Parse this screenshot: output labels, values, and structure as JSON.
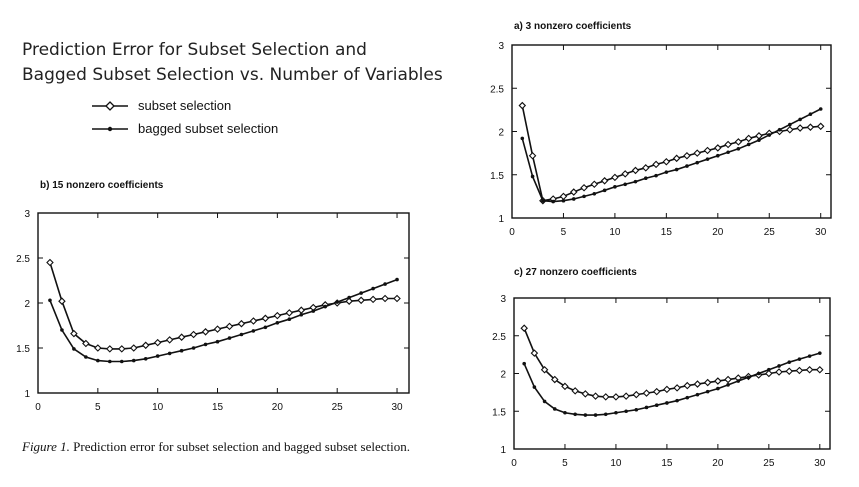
{
  "header": {
    "title_line1": "Prediction Error for Subset Selection and",
    "title_line2": "Bagged Subset Selection vs. Number of Variables"
  },
  "legend": {
    "items": [
      {
        "label": "subset selection",
        "marker": "open-diamond"
      },
      {
        "label": "bagged subset selection",
        "marker": "filled-dot"
      }
    ]
  },
  "caption": {
    "figure_label": "Figure 1.",
    "text": " Prediction error for subset selection and bagged subset selection."
  },
  "colors": {
    "line": "#111111"
  },
  "chart_data": [
    {
      "id": "a",
      "type": "line",
      "title": "a) 3 nonzero coefficients",
      "xlim": [
        0,
        31
      ],
      "ylim": [
        1,
        3
      ],
      "xticks": [
        0,
        5,
        10,
        15,
        20,
        25,
        30
      ],
      "yticks": [
        1,
        1.5,
        2,
        2.5,
        3
      ],
      "x": [
        1,
        2,
        3,
        4,
        5,
        6,
        7,
        8,
        9,
        10,
        11,
        12,
        13,
        14,
        15,
        16,
        17,
        18,
        19,
        20,
        21,
        22,
        23,
        24,
        25,
        26,
        27,
        28,
        29,
        30
      ],
      "series": [
        {
          "name": "subset selection",
          "marker": "open-diamond",
          "values": [
            2.3,
            1.72,
            1.2,
            1.22,
            1.25,
            1.3,
            1.35,
            1.39,
            1.43,
            1.47,
            1.51,
            1.55,
            1.58,
            1.62,
            1.65,
            1.69,
            1.72,
            1.75,
            1.78,
            1.81,
            1.85,
            1.88,
            1.92,
            1.95,
            1.98,
            2.0,
            2.02,
            2.04,
            2.05,
            2.06
          ]
        },
        {
          "name": "bagged subset selection",
          "marker": "filled-dot",
          "values": [
            1.92,
            1.48,
            1.2,
            1.19,
            1.2,
            1.22,
            1.25,
            1.28,
            1.32,
            1.36,
            1.39,
            1.42,
            1.46,
            1.49,
            1.53,
            1.56,
            1.6,
            1.64,
            1.68,
            1.72,
            1.76,
            1.8,
            1.85,
            1.9,
            1.96,
            2.02,
            2.08,
            2.14,
            2.2,
            2.26
          ]
        }
      ]
    },
    {
      "id": "b",
      "type": "line",
      "title": "b) 15 nonzero coefficients",
      "xlim": [
        0,
        31
      ],
      "ylim": [
        1,
        3
      ],
      "xticks": [
        0,
        5,
        10,
        15,
        20,
        25,
        30
      ],
      "yticks": [
        1,
        1.5,
        2,
        2.5,
        3
      ],
      "x": [
        1,
        2,
        3,
        4,
        5,
        6,
        7,
        8,
        9,
        10,
        11,
        12,
        13,
        14,
        15,
        16,
        17,
        18,
        19,
        20,
        21,
        22,
        23,
        24,
        25,
        26,
        27,
        28,
        29,
        30
      ],
      "series": [
        {
          "name": "subset selection",
          "marker": "open-diamond",
          "values": [
            2.45,
            2.02,
            1.66,
            1.55,
            1.5,
            1.49,
            1.49,
            1.5,
            1.53,
            1.56,
            1.59,
            1.62,
            1.65,
            1.68,
            1.71,
            1.74,
            1.77,
            1.8,
            1.83,
            1.86,
            1.89,
            1.92,
            1.95,
            1.98,
            2.0,
            2.02,
            2.03,
            2.04,
            2.05,
            2.05
          ]
        },
        {
          "name": "bagged subset selection",
          "marker": "filled-dot",
          "values": [
            2.03,
            1.7,
            1.49,
            1.4,
            1.36,
            1.35,
            1.35,
            1.36,
            1.38,
            1.41,
            1.44,
            1.47,
            1.5,
            1.54,
            1.57,
            1.61,
            1.65,
            1.69,
            1.73,
            1.78,
            1.82,
            1.87,
            1.91,
            1.96,
            2.01,
            2.06,
            2.11,
            2.16,
            2.21,
            2.26
          ]
        }
      ]
    },
    {
      "id": "c",
      "type": "line",
      "title": "c) 27 nonzero coefficients",
      "xlim": [
        0,
        31
      ],
      "ylim": [
        1,
        3
      ],
      "xticks": [
        0,
        5,
        10,
        15,
        20,
        25,
        30
      ],
      "yticks": [
        1,
        1.5,
        2,
        2.5,
        3
      ],
      "x": [
        1,
        2,
        3,
        4,
        5,
        6,
        7,
        8,
        9,
        10,
        11,
        12,
        13,
        14,
        15,
        16,
        17,
        18,
        19,
        20,
        21,
        22,
        23,
        24,
        25,
        26,
        27,
        28,
        29,
        30
      ],
      "series": [
        {
          "name": "subset selection",
          "marker": "open-diamond",
          "values": [
            2.6,
            2.27,
            2.05,
            1.92,
            1.83,
            1.77,
            1.73,
            1.7,
            1.69,
            1.69,
            1.7,
            1.72,
            1.74,
            1.76,
            1.79,
            1.81,
            1.84,
            1.86,
            1.88,
            1.9,
            1.92,
            1.94,
            1.96,
            1.98,
            2.0,
            2.02,
            2.03,
            2.04,
            2.05,
            2.05
          ]
        },
        {
          "name": "bagged subset selection",
          "marker": "filled-dot",
          "values": [
            2.13,
            1.82,
            1.63,
            1.53,
            1.48,
            1.46,
            1.45,
            1.45,
            1.46,
            1.48,
            1.5,
            1.52,
            1.55,
            1.58,
            1.61,
            1.64,
            1.68,
            1.72,
            1.76,
            1.8,
            1.85,
            1.9,
            1.95,
            2.0,
            2.05,
            2.1,
            2.15,
            2.19,
            2.23,
            2.27
          ]
        }
      ]
    }
  ]
}
